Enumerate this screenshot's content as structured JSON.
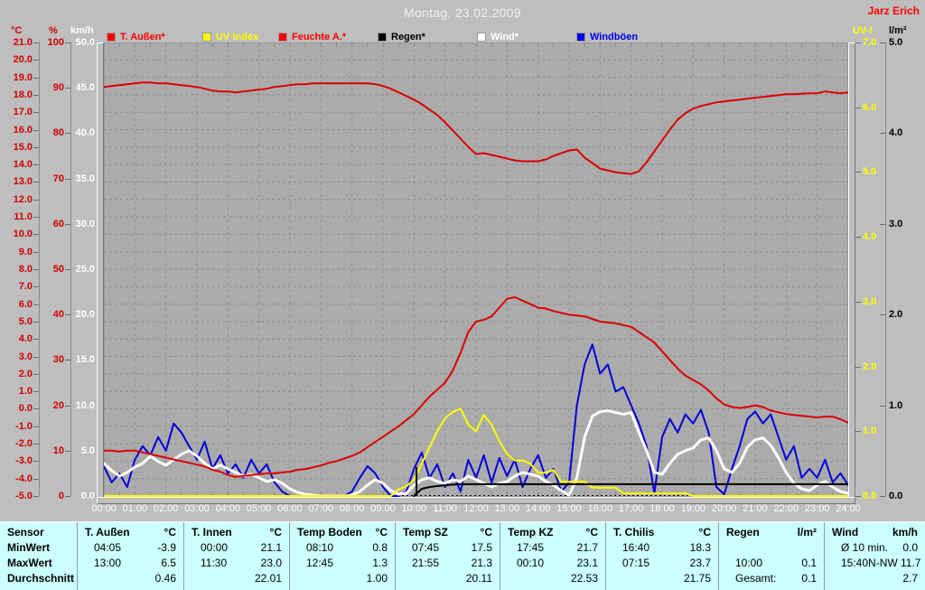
{
  "header": {
    "title": "Montag, 23.02.2009",
    "station": "Jarz Erich"
  },
  "units": {
    "c": "°C",
    "pct": "%",
    "kmh": "km/h",
    "uvi": "UV-I",
    "lm2": "l/m²"
  },
  "legend": [
    {
      "label": "T. Außen*",
      "color": "#ff0000",
      "text_color": "#ff0000"
    },
    {
      "label": "UV Index",
      "color": "#ffff00",
      "text_color": "#ffff00"
    },
    {
      "label": "Feuchte A.*",
      "color": "#ff0000",
      "text_color": "#ff0000"
    },
    {
      "label": "Regen*",
      "color": "#000000",
      "text_color": "#000000"
    },
    {
      "label": "Wind*",
      "color": "#ffffff",
      "text_color": "#ffffff"
    },
    {
      "label": "Windböen",
      "color": "#0000ee",
      "text_color": "#0000ee"
    }
  ],
  "axes": {
    "x": {
      "labels": [
        "00:00",
        "01:00",
        "02:00",
        "03:00",
        "04:00",
        "05:00",
        "06:00",
        "07:00",
        "08:00",
        "09:00",
        "10:00",
        "11:00",
        "12:00",
        "13:00",
        "14:00",
        "15:00",
        "16:00",
        "17:00",
        "18:00",
        "19:00",
        "20:00",
        "21:00",
        "22:00",
        "23:00",
        "24:00"
      ]
    },
    "temp_c": {
      "unit": "°C",
      "color": "#d40000",
      "min": -5,
      "max": 21,
      "ticks": [
        "21.0",
        "20.0",
        "19.0",
        "18.0",
        "17.0",
        "16.0",
        "15.0",
        "14.0",
        "13.0",
        "12.0",
        "11.0",
        "10.0",
        "9.0",
        "8.0",
        "7.0",
        "6.0",
        "5.0",
        "4.0",
        "3.0",
        "2.0",
        "1.0",
        "0.0",
        "-1.0",
        "-2.0",
        "-3.0",
        "-4.0",
        "-5.0"
      ]
    },
    "humidity": {
      "unit": "%",
      "color": "#d40000",
      "min": 0,
      "max": 100,
      "ticks": [
        "100",
        "90",
        "80",
        "70",
        "60",
        "50",
        "40",
        "30",
        "20",
        "10",
        "0"
      ]
    },
    "wind": {
      "unit": "km/h",
      "color": "#ffffff",
      "min": 0,
      "max": 50,
      "ticks": [
        "50.0",
        "45.0",
        "40.0",
        "35.0",
        "30.0",
        "25.0",
        "20.0",
        "15.0",
        "10.0",
        "5.0",
        "0.0"
      ]
    },
    "uv": {
      "unit": "UV-I",
      "color": "#ffff00",
      "min": 0,
      "max": 7,
      "ticks": [
        "7.0",
        "6.0",
        "5.0",
        "4.0",
        "3.0",
        "2.0",
        "1.0",
        "0.0"
      ]
    },
    "rain": {
      "unit": "l/m²",
      "color": "#000000",
      "min": 0,
      "max": 5,
      "ticks": [
        "5.0",
        "4.0",
        "3.0",
        "2.0",
        "1.0",
        "0.0"
      ]
    }
  },
  "chart_data": {
    "type": "line",
    "title": "Montag, 23.02.2009",
    "x_unit": "hour_of_day",
    "x_start": 0,
    "x_step": 0.25,
    "x_range": [
      0,
      24
    ],
    "grid": "dashed hourly vertical, 1°C horizontal",
    "series": [
      {
        "name": "T. Außen",
        "unit": "°C",
        "axis": "temp_c",
        "color": "#dd0000",
        "width": 2,
        "values": [
          -2.4,
          -2.4,
          -2.45,
          -2.4,
          -2.4,
          -2.5,
          -2.6,
          -2.7,
          -2.8,
          -2.9,
          -3.0,
          -3.1,
          -3.2,
          -3.3,
          -3.5,
          -3.6,
          -3.8,
          -3.9,
          -3.85,
          -3.8,
          -3.75,
          -3.7,
          -3.7,
          -3.65,
          -3.6,
          -3.5,
          -3.45,
          -3.35,
          -3.25,
          -3.1,
          -3.0,
          -2.85,
          -2.7,
          -2.5,
          -2.2,
          -1.9,
          -1.6,
          -1.3,
          -1.0,
          -0.65,
          -0.3,
          0.2,
          0.7,
          1.1,
          1.5,
          2.2,
          3.2,
          4.4,
          5.0,
          5.1,
          5.3,
          5.8,
          6.3,
          6.4,
          6.2,
          6.0,
          5.8,
          5.75,
          5.6,
          5.5,
          5.4,
          5.35,
          5.3,
          5.15,
          5.0,
          4.95,
          4.9,
          4.8,
          4.7,
          4.4,
          4.1,
          3.8,
          3.3,
          2.8,
          2.3,
          1.9,
          1.65,
          1.4,
          1.05,
          0.6,
          0.25,
          0.1,
          0.05,
          0.1,
          0.2,
          0.1,
          -0.1,
          -0.2,
          -0.3,
          -0.35,
          -0.4,
          -0.45,
          -0.5,
          -0.45,
          -0.45,
          -0.6,
          -0.8
        ]
      },
      {
        "name": "UV Index",
        "unit": "UV-I",
        "axis": "uv",
        "color": "#ffff00",
        "width": 2,
        "values": [
          0,
          0,
          0,
          0,
          0,
          0,
          0,
          0,
          0,
          0,
          0,
          0,
          0,
          0,
          0,
          0,
          0,
          0,
          0,
          0,
          0,
          0,
          0,
          0,
          0,
          0,
          0,
          0,
          0,
          0,
          0,
          0,
          0,
          0,
          0,
          0,
          0,
          0,
          0.1,
          0.15,
          0.25,
          0.5,
          0.75,
          1.0,
          1.2,
          1.3,
          1.35,
          1.1,
          1.0,
          1.25,
          1.1,
          0.85,
          0.65,
          0.55,
          0.55,
          0.5,
          0.36,
          0.36,
          0.4,
          0.22,
          0.22,
          0.22,
          0.22,
          0.13,
          0.13,
          0.13,
          0.13,
          0.04,
          0.04,
          0.04,
          0.04,
          0.04,
          0.04,
          0.04,
          0.04,
          0.04,
          0,
          0,
          0,
          0,
          0,
          0,
          0,
          0,
          0,
          0,
          0,
          0,
          0,
          0,
          0,
          0,
          0,
          0,
          0,
          0,
          0
        ]
      },
      {
        "name": "Feuchte A.",
        "unit": "%",
        "axis": "humidity",
        "color": "#dd0000",
        "width": 2,
        "values": [
          90.2,
          90.4,
          90.6,
          90.8,
          91.0,
          91.2,
          91.2,
          91.0,
          91.0,
          90.8,
          90.6,
          90.4,
          90.2,
          89.8,
          89.4,
          89.2,
          89.2,
          89.0,
          89.2,
          89.4,
          89.6,
          89.8,
          90.2,
          90.4,
          90.6,
          90.8,
          90.8,
          91.0,
          91.0,
          91.0,
          91.0,
          91.0,
          91.0,
          91.0,
          91.0,
          90.8,
          90.4,
          89.8,
          89.0,
          88.2,
          87.4,
          86.4,
          85.2,
          84.0,
          82.4,
          80.6,
          78.8,
          77.0,
          75.4,
          75.6,
          75.2,
          74.8,
          74.4,
          74.0,
          73.8,
          73.8,
          73.8,
          74.2,
          75.0,
          75.6,
          76.2,
          76.4,
          74.6,
          73.4,
          72.2,
          71.8,
          71.4,
          71.2,
          71.0,
          71.6,
          73.6,
          76.0,
          78.4,
          80.8,
          83.0,
          84.4,
          85.4,
          86.0,
          86.4,
          86.8,
          87.0,
          87.2,
          87.4,
          87.6,
          87.8,
          88.0,
          88.2,
          88.4,
          88.6,
          88.6,
          88.7,
          88.8,
          88.8,
          89.2,
          89.0,
          88.8,
          89.0
        ]
      },
      {
        "name": "Regen",
        "unit": "l/m²",
        "axis": "rain",
        "color": "#000000",
        "width": 2,
        "values": [
          null,
          null,
          null,
          null,
          null,
          null,
          null,
          null,
          null,
          null,
          null,
          null,
          null,
          null,
          null,
          null,
          null,
          null,
          null,
          null,
          null,
          null,
          null,
          null,
          null,
          null,
          null,
          null,
          null,
          null,
          null,
          null,
          null,
          null,
          null,
          null,
          null,
          null,
          null,
          null,
          0,
          0.08,
          0.1,
          0.11,
          0.12,
          0.125,
          0.13,
          0.13,
          0.13,
          0.13,
          0.13,
          0.13,
          0.13,
          0.13,
          0.13,
          0.13,
          0.13,
          0.13,
          0.13,
          0.13,
          0.13,
          0.13,
          0.13,
          0.13,
          0.13,
          0.13,
          0.13,
          0.13,
          0.13,
          0.13,
          0.13,
          0.13,
          0.13,
          0.13,
          0.13,
          0.13,
          0.13,
          0.13,
          0.13,
          0.13,
          0.13,
          0.13,
          0.13,
          0.13,
          0.13,
          0.13,
          0.13,
          0.13,
          0.13,
          0.13,
          0.13,
          0.13,
          0.13,
          0.13,
          0.13,
          0.13,
          0.13
        ],
        "event_marker": {
          "t": 10.08,
          "value": 0.32
        }
      },
      {
        "name": "Wind",
        "unit": "km/h",
        "axis": "wind",
        "color": "#ffffff",
        "width": 3,
        "values": [
          3.6,
          2.8,
          2.2,
          2.6,
          3.2,
          3.6,
          4.4,
          3.8,
          3.4,
          4.0,
          4.6,
          5.0,
          4.4,
          3.6,
          3.0,
          3.4,
          3.0,
          2.6,
          2.2,
          2.4,
          2.0,
          1.6,
          1.8,
          1.4,
          0.8,
          0.4,
          0.2,
          0.1,
          0,
          0,
          0,
          0,
          0.1,
          0.5,
          1.2,
          1.8,
          1.4,
          0.6,
          0.2,
          0.3,
          1.2,
          1.8,
          2.0,
          1.6,
          1.4,
          1.8,
          1.6,
          2.2,
          1.8,
          1.4,
          1.0,
          1.4,
          1.6,
          2.2,
          2.6,
          2.4,
          2.2,
          1.6,
          1.2,
          0.6,
          0.1,
          2.0,
          6.5,
          8.8,
          9.3,
          9.4,
          9.2,
          9.0,
          9.2,
          7.0,
          5.0,
          2.6,
          2.4,
          3.6,
          4.6,
          5.0,
          5.3,
          6.2,
          6.4,
          5.0,
          3.0,
          2.6,
          3.6,
          5.4,
          6.2,
          6.4,
          5.6,
          4.2,
          2.6,
          1.4,
          0.8,
          0.6,
          1.2,
          1.6,
          1.0,
          0.5,
          0.3
        ]
      },
      {
        "name": "Windböen",
        "unit": "km/h",
        "axis": "wind",
        "color": "#0000dd",
        "width": 2,
        "values": [
          3.3,
          1.5,
          2.5,
          1.0,
          4.0,
          5.5,
          4.5,
          6.5,
          5.0,
          8.0,
          7.0,
          5.5,
          4.0,
          6.0,
          3.0,
          4.5,
          2.5,
          3.5,
          2.0,
          4.0,
          2.5,
          3.5,
          1.5,
          0.5,
          0,
          0,
          0,
          0,
          0,
          0,
          0,
          0,
          0.5,
          2.0,
          3.3,
          2.5,
          1.0,
          0,
          0,
          0.5,
          3.0,
          4.8,
          2.0,
          3.5,
          1.0,
          2.5,
          0.5,
          4.0,
          2.0,
          4.5,
          1.5,
          4.2,
          2.2,
          4.0,
          1.0,
          3.0,
          4.5,
          2.0,
          3.0,
          0.5,
          1.5,
          10.0,
          14.5,
          16.7,
          13.5,
          14.5,
          11.5,
          12.0,
          10.0,
          8.0,
          5.5,
          0.3,
          6.5,
          8.5,
          7.0,
          9.0,
          8.0,
          9.5,
          7.0,
          1.0,
          0.2,
          3.0,
          5.5,
          8.5,
          9.3,
          8.0,
          9.0,
          6.5,
          4.0,
          5.5,
          2.0,
          3.0,
          2.0,
          4.0,
          1.5,
          2.5,
          1.2
        ]
      }
    ]
  },
  "table": {
    "row_labels": [
      "Sensor",
      "MinWert",
      "MaxWert",
      "Durchschnitt"
    ],
    "columns": [
      {
        "name": "T. Außen",
        "unit": "°C",
        "min": [
          "04:05",
          "-3.9"
        ],
        "max": [
          "13:00",
          "6.5"
        ],
        "avg": [
          "",
          "0.46"
        ]
      },
      {
        "name": "T. Innen",
        "unit": "°C",
        "min": [
          "00:00",
          "21.1"
        ],
        "max": [
          "11:30",
          "23.0"
        ],
        "avg": [
          "",
          "22.01"
        ]
      },
      {
        "name": "Temp Boden",
        "unit": "°C",
        "min": [
          "08:10",
          "0.8"
        ],
        "max": [
          "12:45",
          "1.3"
        ],
        "avg": [
          "",
          "1.00"
        ]
      },
      {
        "name": "Temp SZ",
        "unit": "°C",
        "min": [
          "07:45",
          "17.5"
        ],
        "max": [
          "21:55",
          "21.3"
        ],
        "avg": [
          "",
          "20.11"
        ]
      },
      {
        "name": "Temp KZ",
        "unit": "°C",
        "min": [
          "17:45",
          "21.7"
        ],
        "max": [
          "00:10",
          "23.1"
        ],
        "avg": [
          "",
          "22.53"
        ]
      },
      {
        "name": "T. Chilis",
        "unit": "°C",
        "min": [
          "16:40",
          "18.3"
        ],
        "max": [
          "07:15",
          "23.7"
        ],
        "avg": [
          "",
          "21.75"
        ]
      },
      {
        "name": "Regen",
        "unit": "l/m²",
        "min": [
          "",
          ""
        ],
        "max": [
          "10:00",
          "0.1"
        ],
        "avg": [
          "Gesamt:",
          "0.1"
        ]
      },
      {
        "name": "Wind",
        "unit": "km/h",
        "min": [
          "Ø 10 min.",
          "0.0"
        ],
        "max": [
          "15:40",
          "N-NW 11.7"
        ],
        "avg": [
          "",
          "2.7"
        ]
      }
    ]
  }
}
